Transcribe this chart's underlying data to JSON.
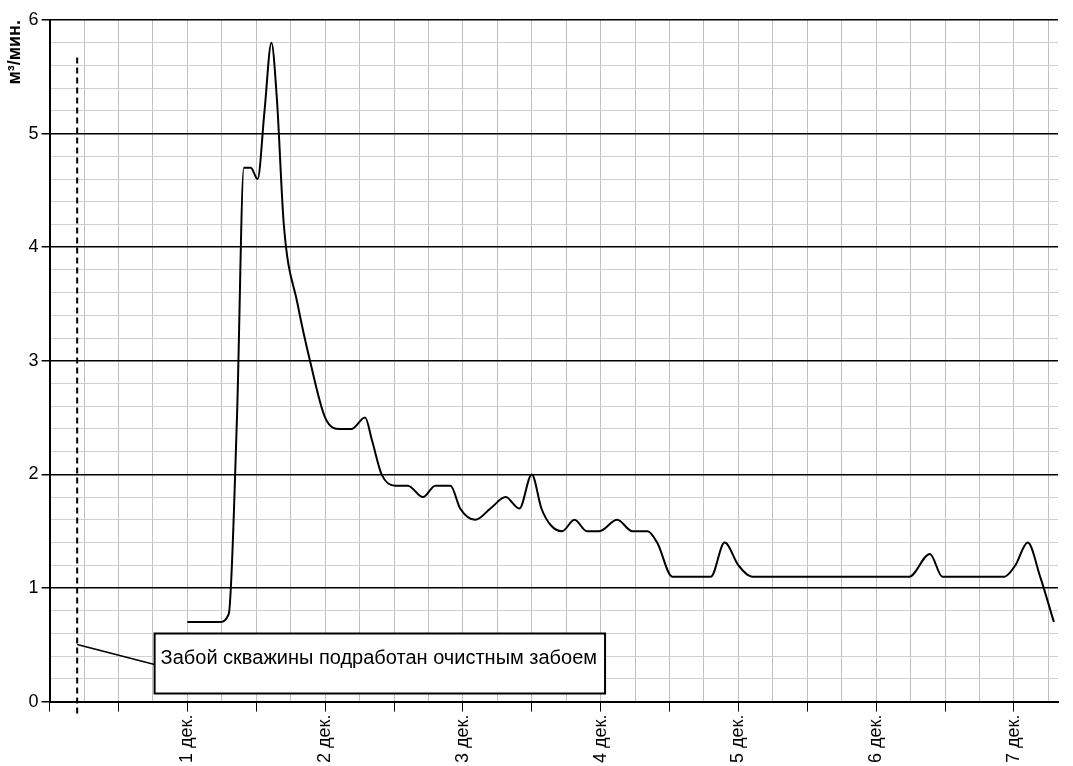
{
  "chart_data": {
    "type": "line",
    "ylabel": "м³/мин.",
    "x": [
      1.0,
      1.16,
      1.23,
      1.3,
      1.36,
      1.41,
      1.46,
      1.51,
      1.56,
      1.61,
      1.65,
      1.7,
      1.8,
      1.89,
      2.0,
      2.11,
      2.19,
      2.29,
      2.34,
      2.41,
      2.51,
      2.6,
      2.71,
      2.8,
      2.91,
      2.98,
      3.09,
      3.2,
      3.31,
      3.41,
      3.5,
      3.57,
      3.64,
      3.72,
      3.81,
      3.9,
      3.99,
      4.12,
      4.23,
      4.34,
      4.41,
      4.52,
      4.63,
      4.73,
      4.8,
      4.9,
      5.0,
      5.1,
      5.33,
      6.06,
      6.24,
      6.39,
      6.48,
      6.57,
      6.93,
      7.01,
      7.1,
      7.19,
      7.29
    ],
    "series": [
      {
        "color": "#000000",
        "values": [
          0.7,
          0.7,
          0.7,
          0.77,
          2.5,
          4.7,
          4.7,
          4.6,
          5.2,
          5.8,
          5.3,
          4.2,
          3.5,
          3.0,
          2.5,
          2.4,
          2.4,
          2.5,
          2.3,
          2.0,
          1.9,
          1.9,
          1.8,
          1.9,
          1.9,
          1.7,
          1.6,
          1.7,
          1.8,
          1.7,
          2.0,
          1.7,
          1.55,
          1.5,
          1.6,
          1.5,
          1.5,
          1.6,
          1.5,
          1.5,
          1.4,
          1.1,
          1.1,
          1.1,
          1.1,
          1.4,
          1.2,
          1.1,
          1.1,
          1.1,
          1.1,
          1.3,
          1.1,
          1.1,
          1.1,
          1.2,
          1.4,
          1.1,
          0.7
        ]
      }
    ],
    "xlim": [
      0,
      7.32
    ],
    "xticks": [
      {
        "value": 0,
        "label": null
      },
      {
        "value": 0.25,
        "label": null
      },
      {
        "value": 0.5,
        "label": null
      },
      {
        "value": 0.75,
        "label": null
      },
      {
        "value": 1,
        "label": "1 дек."
      },
      {
        "value": 1.25,
        "label": null
      },
      {
        "value": 1.5,
        "label": null
      },
      {
        "value": 1.75,
        "label": null
      },
      {
        "value": 2,
        "label": "2 дек."
      },
      {
        "value": 2.25,
        "label": null
      },
      {
        "value": 2.5,
        "label": null
      },
      {
        "value": 2.75,
        "label": null
      },
      {
        "value": 3,
        "label": "3 дек."
      },
      {
        "value": 3.25,
        "label": null
      },
      {
        "value": 3.5,
        "label": null
      },
      {
        "value": 3.75,
        "label": null
      },
      {
        "value": 4,
        "label": "4 дек."
      },
      {
        "value": 4.25,
        "label": null
      },
      {
        "value": 4.5,
        "label": null
      },
      {
        "value": 4.75,
        "label": null
      },
      {
        "value": 5,
        "label": "5 дек."
      },
      {
        "value": 5.25,
        "label": null
      },
      {
        "value": 5.5,
        "label": null
      },
      {
        "value": 5.75,
        "label": null
      },
      {
        "value": 6,
        "label": "6 дек."
      },
      {
        "value": 6.25,
        "label": null
      },
      {
        "value": 6.5,
        "label": null
      },
      {
        "value": 6.75,
        "label": null
      },
      {
        "value": 7,
        "label": "7 дек."
      },
      {
        "value": 7.25,
        "label": null
      }
    ],
    "ylim": [
      0,
      6
    ],
    "yticks": [
      0,
      {
        "value": 0.2,
        "label": null
      },
      {
        "value": 0.4,
        "label": null
      },
      {
        "value": 0.6,
        "label": null
      },
      {
        "value": 0.8,
        "label": null
      },
      1,
      {
        "value": 1.2,
        "label": null
      },
      {
        "value": 1.4,
        "label": null
      },
      {
        "value": 1.6,
        "label": null
      },
      {
        "value": 1.8,
        "label": null
      },
      2,
      {
        "value": 2.2,
        "label": null
      },
      {
        "value": 2.4,
        "label": null
      },
      {
        "value": 2.6,
        "label": null
      },
      {
        "value": 2.8,
        "label": null
      },
      3,
      {
        "value": 3.2,
        "label": null
      },
      {
        "value": 3.4,
        "label": null
      },
      {
        "value": 3.6,
        "label": null
      },
      {
        "value": 3.8,
        "label": null
      },
      4,
      {
        "value": 4.2,
        "label": null
      },
      {
        "value": 4.4,
        "label": null
      },
      {
        "value": 4.6,
        "label": null
      },
      {
        "value": 4.8,
        "label": null
      },
      5,
      {
        "value": 5.2,
        "label": null
      },
      {
        "value": 5.4,
        "label": null
      },
      {
        "value": 5.6,
        "label": null
      },
      {
        "value": 5.8,
        "label": null
      },
      6
    ],
    "ref_lines": [
      {
        "axis": "x",
        "value": 0.2,
        "label": "Забой скважины подработан очистным забоем",
        "line_style": "dashed",
        "color": "#000000"
      }
    ],
    "grid": true,
    "legend": false,
    "marker": "none",
    "line_style": "solid"
  }
}
